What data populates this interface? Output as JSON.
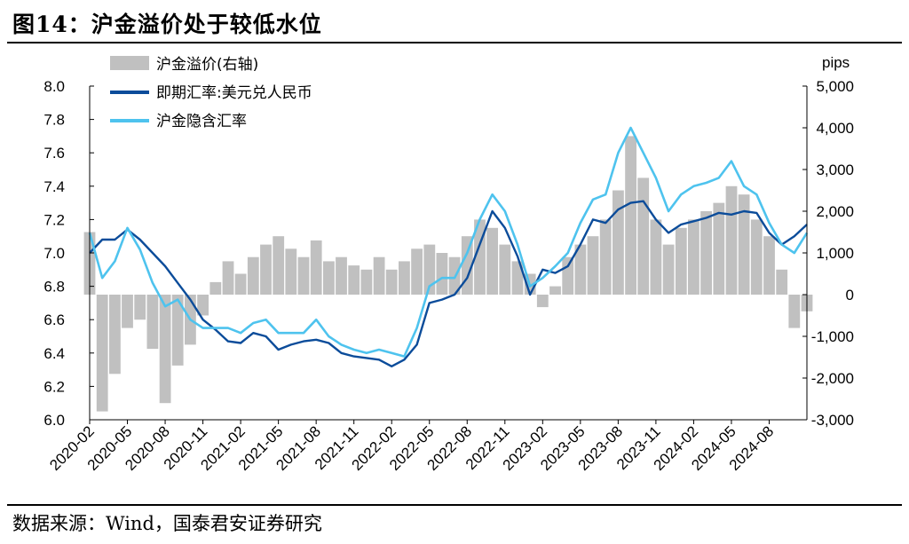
{
  "figure": {
    "title": "图14：沪金溢价处于较低水位",
    "source": "数据来源：Wind，国泰君安证券研究"
  },
  "chart_data": {
    "type": "line",
    "x_ticks": [
      "2020-02",
      "2020-05",
      "2020-08",
      "2020-11",
      "2021-02",
      "2021-05",
      "2021-08",
      "2021-11",
      "2022-02",
      "2022-05",
      "2022-08",
      "2022-11",
      "2023-02",
      "2023-05",
      "2023-08",
      "2023-11",
      "2024-02",
      "2024-05",
      "2024-08"
    ],
    "x_range": [
      "2020-02",
      "2024-11"
    ],
    "y_left": {
      "ticks": [
        "8.0",
        "7.8",
        "7.6",
        "7.4",
        "7.2",
        "7.0",
        "6.8",
        "6.6",
        "6.4",
        "6.2",
        "6.0"
      ],
      "range": [
        6.0,
        8.0
      ]
    },
    "y_right": {
      "unit": "pips",
      "ticks": [
        "5,000",
        "4,000",
        "3,000",
        "2,000",
        "1,000",
        "0",
        "-1,000",
        "-2,000",
        "-3,000"
      ],
      "range": [
        -3000,
        5000
      ]
    },
    "legend_position": "top-left",
    "colors": {
      "premium": "#c0c0c0",
      "spot": "#0b4c9a",
      "implied": "#4ec3ee"
    },
    "series": [
      {
        "name": "沪金溢价(右轴)",
        "kind": "bar",
        "axis": "right",
        "x": [
          "2020-02",
          "2020-03",
          "2020-04",
          "2020-05",
          "2020-06",
          "2020-07",
          "2020-08",
          "2020-09",
          "2020-10",
          "2020-11",
          "2020-12",
          "2021-01",
          "2021-02",
          "2021-03",
          "2021-04",
          "2021-05",
          "2021-06",
          "2021-07",
          "2021-08",
          "2021-09",
          "2021-10",
          "2021-11",
          "2021-12",
          "2022-01",
          "2022-02",
          "2022-03",
          "2022-04",
          "2022-05",
          "2022-06",
          "2022-07",
          "2022-08",
          "2022-09",
          "2022-10",
          "2022-11",
          "2022-12",
          "2023-01",
          "2023-02",
          "2023-03",
          "2023-04",
          "2023-05",
          "2023-06",
          "2023-07",
          "2023-08",
          "2023-09",
          "2023-10",
          "2023-11",
          "2023-12",
          "2024-01",
          "2024-02",
          "2024-03",
          "2024-04",
          "2024-05",
          "2024-06",
          "2024-07",
          "2024-08",
          "2024-09",
          "2024-10",
          "2024-11"
        ],
        "values": [
          1500,
          -2800,
          -1900,
          -800,
          -600,
          -1300,
          -2600,
          -1700,
          -1200,
          -500,
          300,
          800,
          500,
          900,
          1200,
          1400,
          1100,
          900,
          1300,
          800,
          900,
          700,
          600,
          900,
          600,
          800,
          1100,
          1200,
          1000,
          900,
          1400,
          1800,
          1600,
          1200,
          800,
          500,
          -300,
          200,
          900,
          1200,
          1400,
          1800,
          2500,
          3800,
          2800,
          1800,
          1200,
          1600,
          1800,
          2000,
          2200,
          2600,
          2400,
          1800,
          1400,
          600,
          -800,
          -400
        ]
      },
      {
        "name": "即期汇率:美元兑人民币",
        "kind": "line",
        "axis": "left",
        "x": [
          "2020-02",
          "2020-03",
          "2020-04",
          "2020-05",
          "2020-06",
          "2020-07",
          "2020-08",
          "2020-09",
          "2020-10",
          "2020-11",
          "2020-12",
          "2021-01",
          "2021-02",
          "2021-03",
          "2021-04",
          "2021-05",
          "2021-06",
          "2021-07",
          "2021-08",
          "2021-09",
          "2021-10",
          "2021-11",
          "2021-12",
          "2022-01",
          "2022-02",
          "2022-03",
          "2022-04",
          "2022-05",
          "2022-06",
          "2022-07",
          "2022-08",
          "2022-09",
          "2022-10",
          "2022-11",
          "2022-12",
          "2023-01",
          "2023-02",
          "2023-03",
          "2023-04",
          "2023-05",
          "2023-06",
          "2023-07",
          "2023-08",
          "2023-09",
          "2023-10",
          "2023-11",
          "2023-12",
          "2024-01",
          "2024-02",
          "2024-03",
          "2024-04",
          "2024-05",
          "2024-06",
          "2024-07",
          "2024-08",
          "2024-09",
          "2024-10",
          "2024-11"
        ],
        "values": [
          7.0,
          7.08,
          7.08,
          7.14,
          7.08,
          7.0,
          6.92,
          6.82,
          6.72,
          6.6,
          6.54,
          6.47,
          6.46,
          6.52,
          6.5,
          6.42,
          6.45,
          6.47,
          6.48,
          6.46,
          6.4,
          6.38,
          6.37,
          6.36,
          6.32,
          6.36,
          6.45,
          6.7,
          6.72,
          6.75,
          6.85,
          7.05,
          7.25,
          7.15,
          6.98,
          6.75,
          6.9,
          6.88,
          6.92,
          7.05,
          7.2,
          7.18,
          7.26,
          7.3,
          7.31,
          7.2,
          7.12,
          7.17,
          7.19,
          7.21,
          7.24,
          7.23,
          7.25,
          7.24,
          7.12,
          7.05,
          7.1,
          7.17
        ]
      },
      {
        "name": "沪金隐含汇率",
        "kind": "line",
        "axis": "left",
        "x": [
          "2020-02",
          "2020-03",
          "2020-04",
          "2020-05",
          "2020-06",
          "2020-07",
          "2020-08",
          "2020-09",
          "2020-10",
          "2020-11",
          "2020-12",
          "2021-01",
          "2021-02",
          "2021-03",
          "2021-04",
          "2021-05",
          "2021-06",
          "2021-07",
          "2021-08",
          "2021-09",
          "2021-10",
          "2021-11",
          "2021-12",
          "2022-01",
          "2022-02",
          "2022-03",
          "2022-04",
          "2022-05",
          "2022-06",
          "2022-07",
          "2022-08",
          "2022-09",
          "2022-10",
          "2022-11",
          "2022-12",
          "2023-01",
          "2023-02",
          "2023-03",
          "2023-04",
          "2023-05",
          "2023-06",
          "2023-07",
          "2023-08",
          "2023-09",
          "2023-10",
          "2023-11",
          "2023-12",
          "2024-01",
          "2024-02",
          "2024-03",
          "2024-04",
          "2024-05",
          "2024-06",
          "2024-07",
          "2024-08",
          "2024-09",
          "2024-10",
          "2024-11"
        ],
        "values": [
          7.12,
          6.85,
          6.95,
          7.15,
          7.02,
          6.82,
          6.68,
          6.72,
          6.6,
          6.55,
          6.55,
          6.55,
          6.52,
          6.58,
          6.6,
          6.52,
          6.52,
          6.52,
          6.6,
          6.5,
          6.45,
          6.42,
          6.4,
          6.42,
          6.4,
          6.38,
          6.55,
          6.8,
          6.85,
          6.85,
          7.0,
          7.2,
          7.35,
          7.25,
          7.05,
          6.8,
          6.85,
          6.92,
          7.0,
          7.18,
          7.32,
          7.35,
          7.6,
          7.75,
          7.6,
          7.45,
          7.25,
          7.35,
          7.4,
          7.42,
          7.45,
          7.55,
          7.4,
          7.35,
          7.18,
          7.05,
          7.0,
          7.12
        ]
      }
    ]
  }
}
